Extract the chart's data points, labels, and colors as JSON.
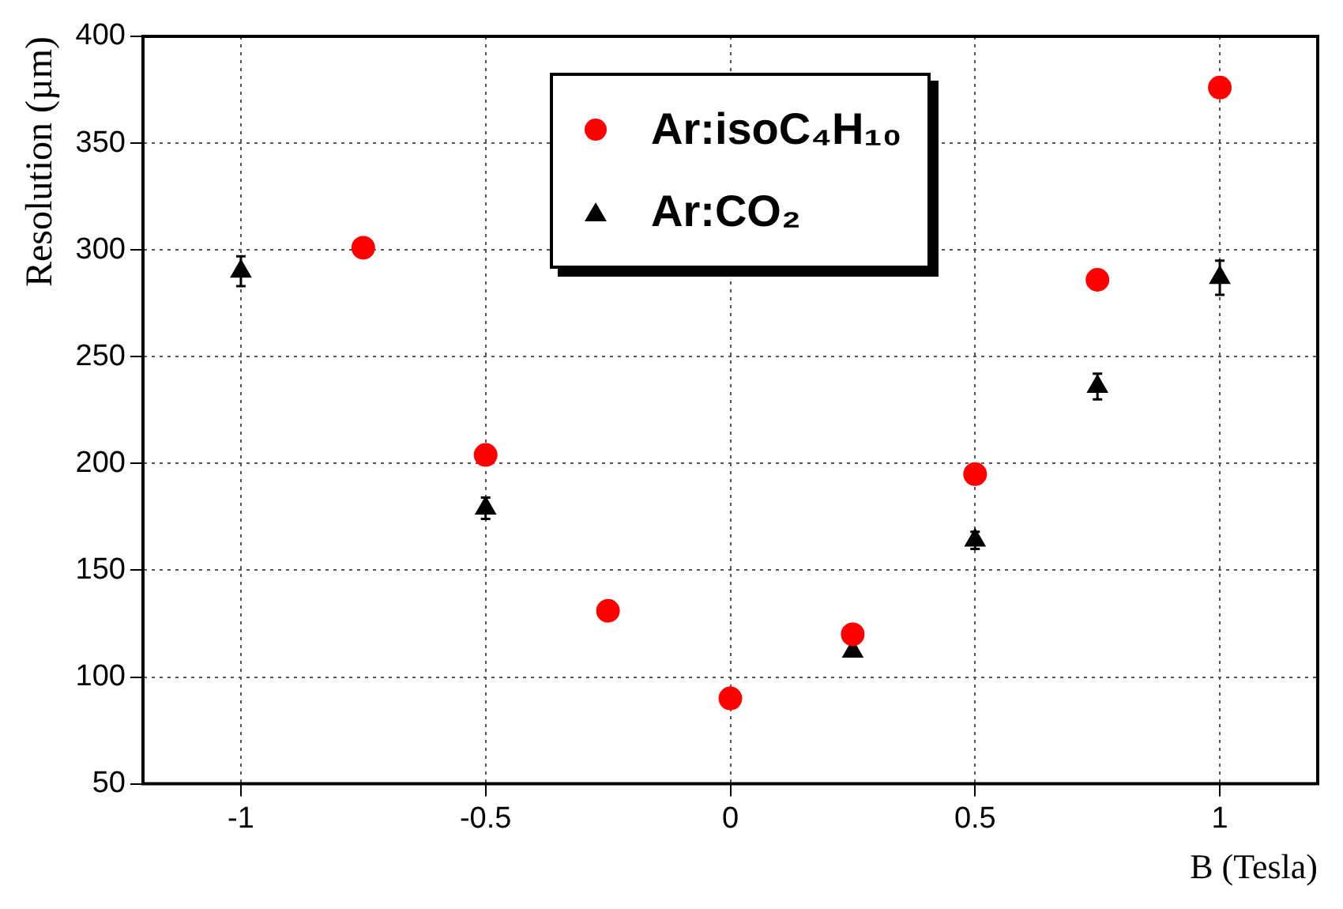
{
  "chart_data": {
    "type": "scatter",
    "xlabel": "B (Tesla)",
    "ylabel": "Resolution (µm)",
    "xlim": [
      -1.2,
      1.2
    ],
    "xticks": [
      -1,
      -0.5,
      0,
      0.5,
      1
    ],
    "ylim": [
      50,
      400
    ],
    "yticks": [
      50,
      100,
      150,
      200,
      250,
      300,
      350,
      400
    ],
    "grid": true,
    "legend": "top",
    "series": [
      {
        "name": "Ar:isoC₄H₁₀",
        "color": "#ff0000",
        "marker": "circle",
        "x": [
          -0.75,
          -0.5,
          -0.25,
          0,
          0.25,
          0.5,
          0.75,
          1
        ],
        "values": [
          301,
          204,
          131,
          90,
          120,
          195,
          286,
          376
        ],
        "errors": [
          4,
          null,
          null,
          null,
          null,
          null,
          4,
          4
        ]
      },
      {
        "name": "Ar:CO₂",
        "color": "#000000",
        "marker": "triangle",
        "x": [
          -1,
          -0.5,
          0,
          0.25,
          0.5,
          0.75,
          1
        ],
        "values": [
          290,
          179,
          null,
          112,
          164,
          236,
          287
        ],
        "errors": [
          7,
          5,
          null,
          null,
          4,
          6,
          8
        ]
      }
    ]
  }
}
